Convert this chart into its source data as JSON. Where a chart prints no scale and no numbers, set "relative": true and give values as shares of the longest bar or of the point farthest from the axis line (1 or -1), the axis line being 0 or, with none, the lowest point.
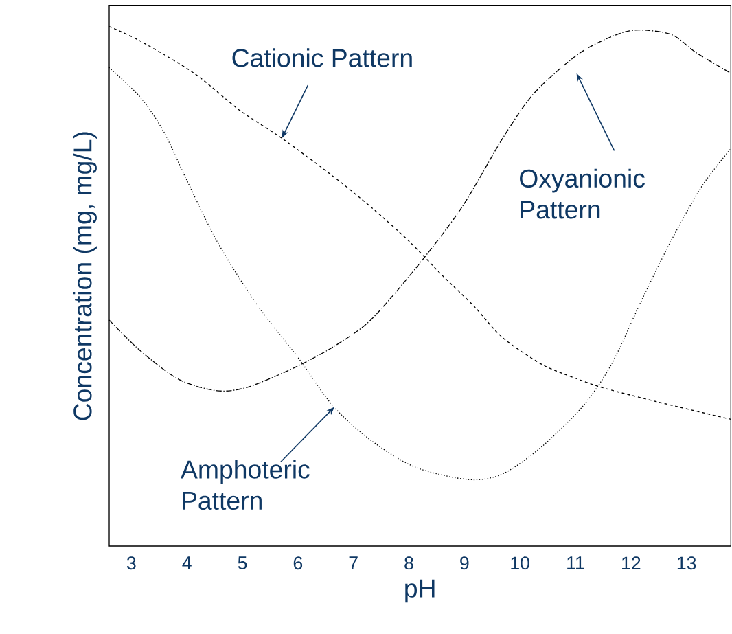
{
  "chart_data": {
    "type": "line",
    "relative": true,
    "xlabel": "pH",
    "ylabel": "Concentration (mg, mg/L)",
    "xlim": [
      2.6,
      13.8
    ],
    "xticks": [
      3,
      4,
      5,
      6,
      7,
      8,
      9,
      10,
      11,
      12,
      13
    ],
    "tick_labels": "x",
    "grid": false,
    "marker": "none",
    "series": [
      {
        "color": "#000000",
        "line_style": "dashed",
        "x": [
          2.6,
          3.16,
          4.13,
          4.96,
          5.71,
          6.63,
          7.31,
          8,
          8.6,
          9.17,
          9.68,
          10.39,
          11,
          11.55,
          12.5,
          13.8
        ],
        "values": [
          1.0,
          0.972,
          0.91,
          0.838,
          0.785,
          0.712,
          0.653,
          0.587,
          0.521,
          0.462,
          0.402,
          0.35,
          0.323,
          0.303,
          0.277,
          0.244
        ]
      },
      {
        "color": "#000000",
        "line_style": "dashdot",
        "x": [
          2.6,
          3.16,
          3.85,
          4.54,
          5.1,
          5.93,
          6.63,
          7.31,
          8.17,
          8.96,
          9.69,
          10.25,
          11,
          11.55,
          12.06,
          12.72,
          13.17,
          13.8
        ],
        "values": [
          0.435,
          0.376,
          0.321,
          0.299,
          0.306,
          0.343,
          0.383,
          0.435,
          0.541,
          0.653,
          0.785,
          0.871,
          0.943,
          0.976,
          0.993,
          0.985,
          0.95,
          0.91
        ]
      },
      {
        "color": "#000000",
        "line_style": "dotted",
        "x": [
          2.6,
          3.16,
          3.58,
          3.99,
          4.54,
          5.24,
          6,
          6.63,
          7.31,
          8.11,
          9.07,
          9.69,
          10.39,
          11.14,
          11.65,
          12.17,
          12.72,
          13.28,
          13.8
        ],
        "values": [
          0.921,
          0.864,
          0.798,
          0.706,
          0.587,
          0.468,
          0.363,
          0.27,
          0.204,
          0.152,
          0.128,
          0.139,
          0.191,
          0.27,
          0.35,
          0.468,
          0.587,
          0.693,
          0.765
        ]
      }
    ],
    "annotations": [
      "Cationic Pattern",
      "Oxyanionic Pattern",
      "Amphoteric Pattern"
    ]
  }
}
